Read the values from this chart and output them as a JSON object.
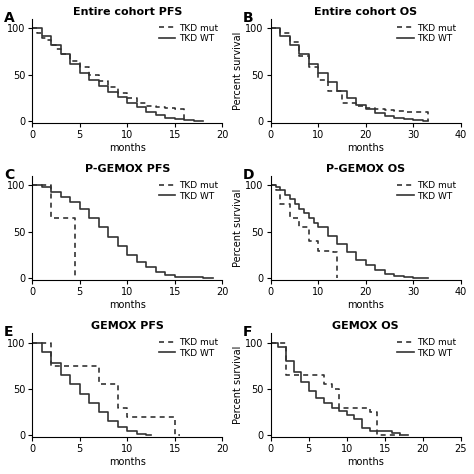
{
  "panels": [
    {
      "label": "A",
      "title": "Entire cohort PFS",
      "xlabel": "months",
      "ylabel": "",
      "xlim": [
        0,
        20
      ],
      "ylim": [
        -2,
        110
      ],
      "xticks": [
        0,
        5,
        10,
        15,
        20
      ],
      "yticks": [
        0,
        50,
        100
      ],
      "mut_x": [
        0,
        0.5,
        1,
        1.5,
        2,
        2.5,
        3,
        4,
        5,
        6,
        7,
        8,
        9,
        10,
        11,
        12,
        13,
        14,
        15,
        16
      ],
      "mut_y": [
        100,
        95,
        90,
        87,
        82,
        78,
        72,
        65,
        58,
        50,
        43,
        37,
        30,
        25,
        20,
        17,
        15,
        14,
        13,
        0
      ],
      "wt_x": [
        0,
        1,
        2,
        3,
        4,
        5,
        6,
        7,
        8,
        9,
        10,
        11,
        12,
        13,
        14,
        15,
        16,
        17,
        18
      ],
      "wt_y": [
        100,
        92,
        82,
        72,
        62,
        52,
        45,
        38,
        32,
        26,
        20,
        15,
        10,
        7,
        4,
        2,
        1,
        0,
        0
      ]
    },
    {
      "label": "B",
      "title": "Entire cohort OS",
      "xlabel": "months",
      "ylabel": "Percent survival",
      "xlim": [
        0,
        40
      ],
      "ylim": [
        -2,
        110
      ],
      "xticks": [
        0,
        10,
        20,
        30,
        40
      ],
      "yticks": [
        0,
        50,
        100
      ],
      "mut_x": [
        0,
        2,
        4,
        6,
        8,
        10,
        12,
        15,
        18,
        20,
        22,
        24,
        26,
        28,
        30,
        32,
        33
      ],
      "mut_y": [
        100,
        95,
        85,
        70,
        58,
        45,
        33,
        20,
        16,
        14,
        13,
        12,
        11,
        10,
        10,
        10,
        0
      ],
      "wt_x": [
        0,
        2,
        4,
        6,
        8,
        10,
        12,
        14,
        16,
        18,
        20,
        22,
        24,
        26,
        28,
        30,
        32,
        33
      ],
      "wt_y": [
        100,
        92,
        82,
        72,
        62,
        52,
        42,
        33,
        25,
        18,
        13,
        9,
        6,
        4,
        2,
        1,
        0,
        0
      ]
    },
    {
      "label": "C",
      "title": "P-GEMOX PFS",
      "xlabel": "months",
      "ylabel": "",
      "xlim": [
        0,
        20
      ],
      "ylim": [
        -2,
        110
      ],
      "xticks": [
        0,
        5,
        10,
        15,
        20
      ],
      "yticks": [
        0,
        50,
        100
      ],
      "mut_x": [
        0,
        0.5,
        1,
        2,
        3,
        4,
        4.5
      ],
      "mut_y": [
        100,
        100,
        100,
        65,
        65,
        65,
        0
      ],
      "wt_x": [
        0,
        1,
        2,
        3,
        4,
        5,
        6,
        7,
        8,
        9,
        10,
        11,
        12,
        13,
        14,
        15,
        16,
        17,
        18,
        19
      ],
      "wt_y": [
        100,
        98,
        93,
        88,
        82,
        75,
        65,
        55,
        45,
        35,
        25,
        18,
        12,
        7,
        4,
        2,
        1,
        1,
        0,
        0
      ]
    },
    {
      "label": "D",
      "title": "P-GEMOX OS",
      "xlabel": "months",
      "ylabel": "Percent survival",
      "xlim": [
        0,
        40
      ],
      "ylim": [
        -2,
        110
      ],
      "xticks": [
        0,
        10,
        20,
        30,
        40
      ],
      "yticks": [
        0,
        50,
        100
      ],
      "mut_x": [
        0,
        1,
        2,
        4,
        6,
        8,
        10,
        12,
        13,
        14
      ],
      "mut_y": [
        100,
        95,
        80,
        65,
        55,
        40,
        30,
        30,
        28,
        0
      ],
      "wt_x": [
        0,
        1,
        2,
        3,
        4,
        5,
        6,
        7,
        8,
        9,
        10,
        12,
        14,
        16,
        18,
        20,
        22,
        24,
        26,
        28,
        30,
        32,
        33
      ],
      "wt_y": [
        100,
        98,
        95,
        90,
        85,
        80,
        75,
        70,
        65,
        60,
        55,
        46,
        37,
        28,
        20,
        14,
        9,
        5,
        3,
        1,
        0,
        0,
        0
      ]
    },
    {
      "label": "E",
      "title": "GEMOX PFS",
      "xlabel": "months",
      "ylabel": "",
      "xlim": [
        0,
        20
      ],
      "ylim": [
        -2,
        110
      ],
      "xticks": [
        0,
        5,
        10,
        15,
        20
      ],
      "yticks": [
        0,
        50,
        100
      ],
      "mut_x": [
        0,
        0.5,
        1,
        2,
        3,
        4,
        5,
        6,
        7,
        8,
        9,
        10,
        11,
        12,
        13,
        14,
        15,
        15.5
      ],
      "mut_y": [
        100,
        100,
        100,
        75,
        75,
        75,
        75,
        75,
        55,
        55,
        30,
        20,
        20,
        20,
        20,
        20,
        0,
        0
      ],
      "wt_x": [
        0,
        1,
        2,
        3,
        4,
        5,
        6,
        7,
        8,
        9,
        10,
        11,
        12,
        12.5
      ],
      "wt_y": [
        100,
        90,
        78,
        65,
        55,
        45,
        35,
        25,
        16,
        9,
        5,
        2,
        0,
        0
      ]
    },
    {
      "label": "F",
      "title": "GEMOX OS",
      "xlabel": "months",
      "ylabel": "Percent survival",
      "xlim": [
        0,
        25
      ],
      "ylim": [
        -2,
        110
      ],
      "xticks": [
        0,
        5,
        10,
        15,
        20,
        25
      ],
      "yticks": [
        0,
        50,
        100
      ],
      "mut_x": [
        0,
        0.5,
        1,
        2,
        3,
        4,
        5,
        6,
        7,
        8,
        9,
        10,
        11,
        12,
        13,
        14,
        15,
        16,
        17
      ],
      "mut_y": [
        100,
        100,
        100,
        65,
        65,
        65,
        65,
        65,
        55,
        50,
        30,
        30,
        30,
        30,
        25,
        0,
        0,
        0,
        0
      ],
      "wt_x": [
        0,
        1,
        2,
        3,
        4,
        5,
        6,
        7,
        8,
        9,
        10,
        11,
        12,
        13,
        14,
        15,
        16,
        17,
        18
      ],
      "wt_y": [
        100,
        95,
        80,
        68,
        58,
        48,
        40,
        35,
        30,
        26,
        22,
        18,
        8,
        5,
        5,
        5,
        3,
        0,
        0
      ]
    }
  ],
  "line_color": "#333333",
  "linewidth": 1.2,
  "legend_labels": [
    "TKD mut",
    "TKD WT"
  ],
  "title_fontsize": 8,
  "tick_fontsize": 7,
  "axis_label_fontsize": 7,
  "legend_fontsize": 6.5,
  "panel_label_fontsize": 10
}
